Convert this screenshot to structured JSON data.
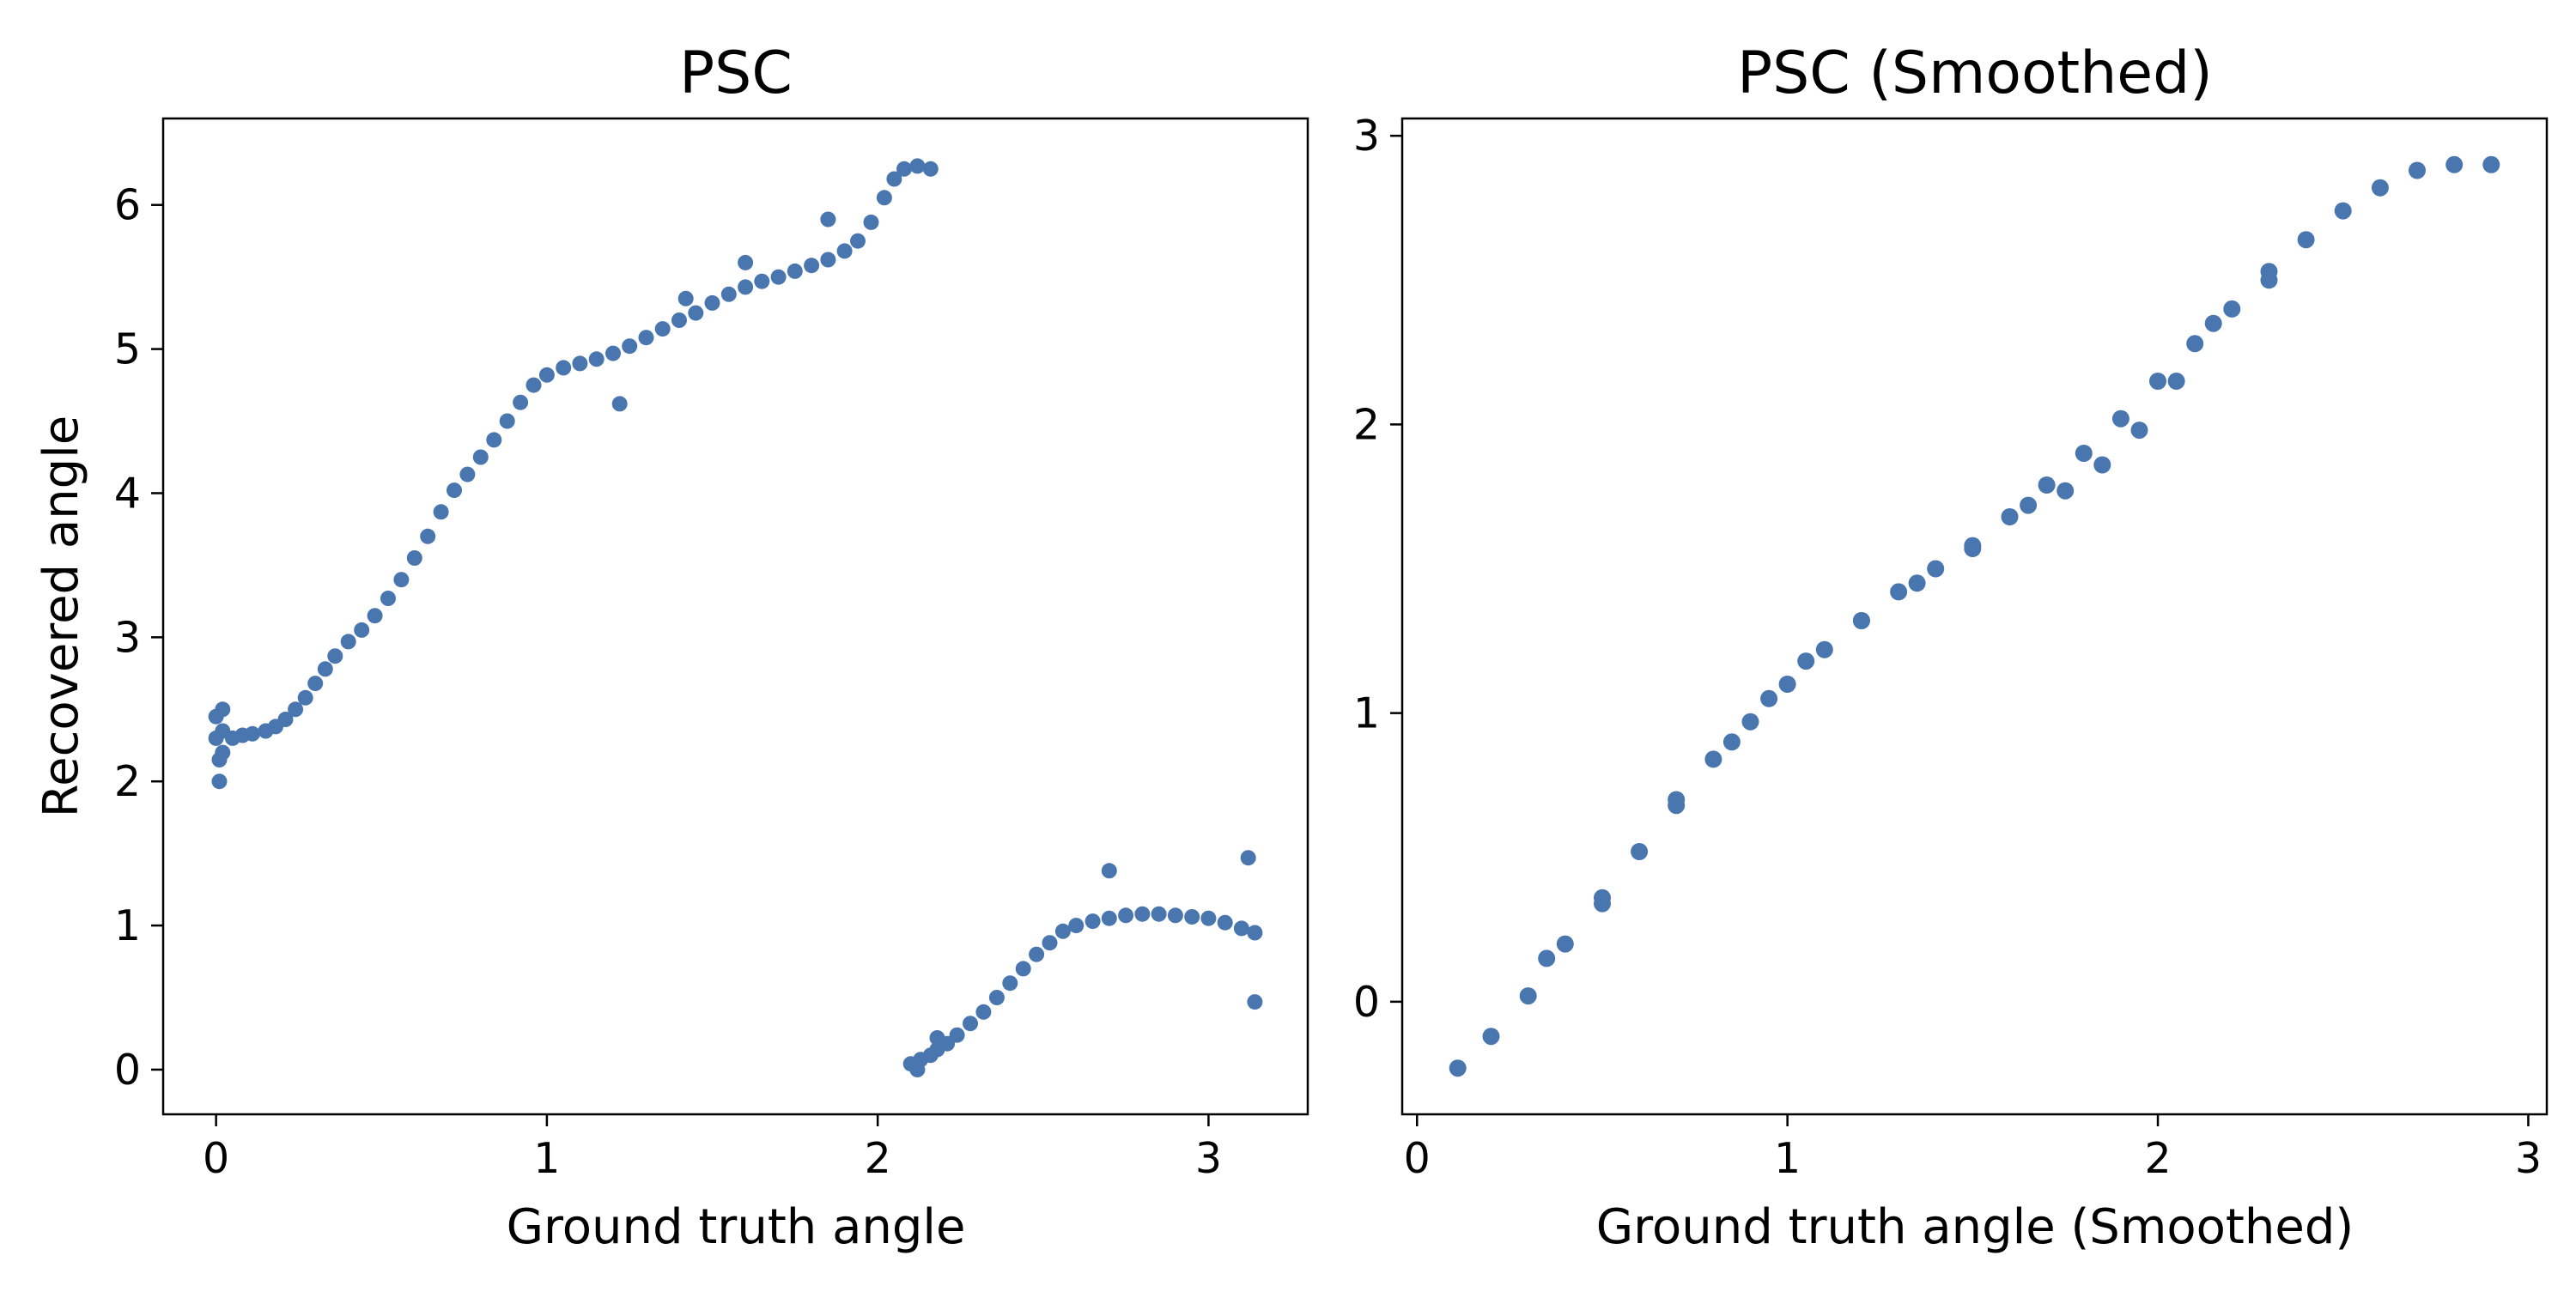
{
  "colors": {
    "points": "#4a76b0",
    "axes": "#000000",
    "background": "#ffffff"
  },
  "chart_data": [
    {
      "type": "scatter",
      "title": "PSC",
      "xlabel": "Ground truth angle",
      "ylabel": "Recovered angle",
      "xlim": [
        -0.16,
        3.3
      ],
      "ylim": [
        -0.31,
        6.6
      ],
      "xticks": [
        0,
        1,
        2,
        3
      ],
      "yticks": [
        0,
        1,
        2,
        3,
        4,
        5,
        6
      ],
      "grid": false,
      "legend": "none",
      "series": [
        {
          "points": [
            [
              0.0,
              2.3
            ],
            [
              0.02,
              2.35
            ],
            [
              0.05,
              2.3
            ],
            [
              0.08,
              2.32
            ],
            [
              0.11,
              2.33
            ],
            [
              0.15,
              2.35
            ],
            [
              0.18,
              2.38
            ],
            [
              0.21,
              2.43
            ],
            [
              0.24,
              2.5
            ],
            [
              0.27,
              2.58
            ],
            [
              0.3,
              2.68
            ],
            [
              0.33,
              2.78
            ],
            [
              0.36,
              2.87
            ],
            [
              0.4,
              2.97
            ],
            [
              0.44,
              3.05
            ],
            [
              0.48,
              3.15
            ],
            [
              0.52,
              3.27
            ],
            [
              0.56,
              3.4
            ],
            [
              0.6,
              3.55
            ],
            [
              0.64,
              3.7
            ],
            [
              0.68,
              3.87
            ],
            [
              0.72,
              4.02
            ],
            [
              0.76,
              4.13
            ],
            [
              0.8,
              4.25
            ],
            [
              0.84,
              4.37
            ],
            [
              0.88,
              4.5
            ],
            [
              0.92,
              4.63
            ],
            [
              0.96,
              4.75
            ],
            [
              1.0,
              4.82
            ],
            [
              1.05,
              4.87
            ],
            [
              1.1,
              4.9
            ],
            [
              1.15,
              4.93
            ],
            [
              1.2,
              4.97
            ],
            [
              1.25,
              5.02
            ],
            [
              1.3,
              5.08
            ],
            [
              1.35,
              5.14
            ],
            [
              1.4,
              5.2
            ],
            [
              1.45,
              5.25
            ],
            [
              1.5,
              5.32
            ],
            [
              1.55,
              5.38
            ],
            [
              1.6,
              5.43
            ],
            [
              1.65,
              5.47
            ],
            [
              1.7,
              5.5
            ],
            [
              1.75,
              5.54
            ],
            [
              1.8,
              5.58
            ],
            [
              1.85,
              5.62
            ],
            [
              1.9,
              5.68
            ],
            [
              1.94,
              5.75
            ],
            [
              1.98,
              5.88
            ],
            [
              2.02,
              6.05
            ],
            [
              2.05,
              6.18
            ],
            [
              2.08,
              6.25
            ],
            [
              2.12,
              6.27
            ],
            [
              2.16,
              6.25
            ],
            [
              0.01,
              2.0
            ],
            [
              0.02,
              2.5
            ],
            [
              0.0,
              2.45
            ],
            [
              0.01,
              2.15
            ],
            [
              0.02,
              2.2
            ],
            [
              1.22,
              4.62
            ],
            [
              1.42,
              5.35
            ],
            [
              1.6,
              5.6
            ],
            [
              1.85,
              5.9
            ],
            [
              2.1,
              0.04
            ],
            [
              2.13,
              0.07
            ],
            [
              2.16,
              0.1
            ],
            [
              2.18,
              0.14
            ],
            [
              2.21,
              0.18
            ],
            [
              2.24,
              0.24
            ],
            [
              2.28,
              0.32
            ],
            [
              2.32,
              0.4
            ],
            [
              2.36,
              0.5
            ],
            [
              2.4,
              0.6
            ],
            [
              2.44,
              0.7
            ],
            [
              2.48,
              0.8
            ],
            [
              2.52,
              0.88
            ],
            [
              2.56,
              0.96
            ],
            [
              2.6,
              1.0
            ],
            [
              2.65,
              1.03
            ],
            [
              2.7,
              1.05
            ],
            [
              2.75,
              1.07
            ],
            [
              2.8,
              1.08
            ],
            [
              2.85,
              1.08
            ],
            [
              2.9,
              1.07
            ],
            [
              2.95,
              1.06
            ],
            [
              3.0,
              1.05
            ],
            [
              3.05,
              1.02
            ],
            [
              3.1,
              0.98
            ],
            [
              3.14,
              0.95
            ],
            [
              3.12,
              1.47
            ],
            [
              3.14,
              0.47
            ],
            [
              2.7,
              1.38
            ],
            [
              2.12,
              0.0
            ],
            [
              2.18,
              0.22
            ]
          ]
        }
      ]
    },
    {
      "type": "scatter",
      "title": "PSC (Smoothed)",
      "xlabel": "Ground truth angle (Smoothed)",
      "ylabel": "",
      "xlim": [
        -0.04,
        3.05
      ],
      "ylim": [
        -0.39,
        3.06
      ],
      "xticks": [
        0,
        1,
        2,
        3
      ],
      "yticks": [
        0,
        1,
        2,
        3
      ],
      "grid": false,
      "legend": "none",
      "series": [
        {
          "points": [
            [
              0.11,
              -0.23
            ],
            [
              0.2,
              -0.12
            ],
            [
              0.3,
              0.02
            ],
            [
              0.4,
              0.2
            ],
            [
              0.5,
              0.36
            ],
            [
              0.6,
              0.52
            ],
            [
              0.7,
              0.68
            ],
            [
              0.8,
              0.84
            ],
            [
              0.9,
              0.97
            ],
            [
              1.0,
              1.1
            ],
            [
              1.1,
              1.22
            ],
            [
              1.2,
              1.32
            ],
            [
              1.3,
              1.42
            ],
            [
              1.4,
              1.5
            ],
            [
              1.5,
              1.58
            ],
            [
              1.6,
              1.68
            ],
            [
              1.7,
              1.79
            ],
            [
              1.8,
              1.9
            ],
            [
              1.9,
              2.02
            ],
            [
              2.0,
              2.15
            ],
            [
              2.1,
              2.28
            ],
            [
              2.2,
              2.4
            ],
            [
              2.3,
              2.53
            ],
            [
              2.4,
              2.64
            ],
            [
              2.5,
              2.74
            ],
            [
              2.6,
              2.82
            ],
            [
              2.7,
              2.88
            ],
            [
              2.8,
              2.9
            ],
            [
              2.9,
              2.9
            ],
            [
              0.35,
              0.15
            ],
            [
              0.5,
              0.34
            ],
            [
              0.7,
              0.7
            ],
            [
              0.85,
              0.9
            ],
            [
              0.95,
              1.05
            ],
            [
              1.05,
              1.18
            ],
            [
              1.2,
              1.32
            ],
            [
              1.35,
              1.45
            ],
            [
              1.5,
              1.57
            ],
            [
              1.65,
              1.72
            ],
            [
              1.75,
              1.77
            ],
            [
              1.85,
              1.86
            ],
            [
              1.95,
              1.98
            ],
            [
              2.05,
              2.15
            ],
            [
              2.15,
              2.35
            ],
            [
              2.3,
              2.5
            ]
          ]
        }
      ]
    }
  ]
}
